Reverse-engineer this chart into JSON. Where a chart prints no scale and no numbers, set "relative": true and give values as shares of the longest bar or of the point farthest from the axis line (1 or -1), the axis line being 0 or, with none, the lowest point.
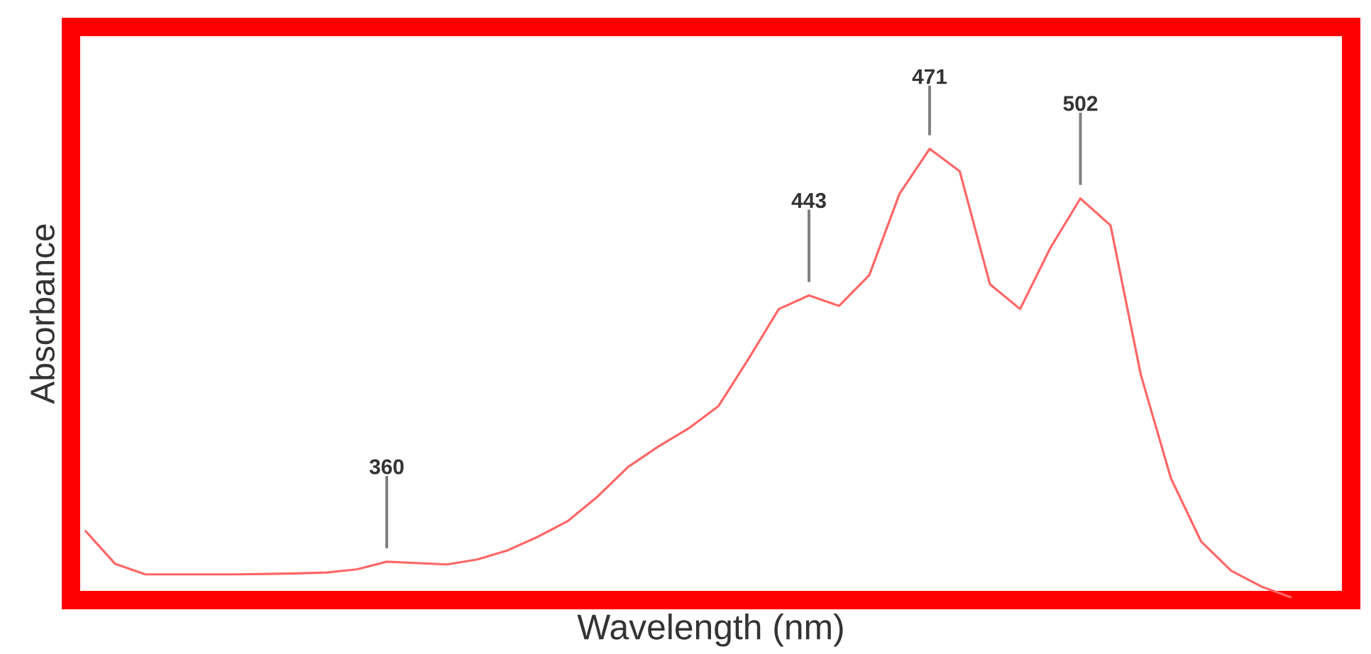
{
  "chart_data": {
    "type": "line",
    "relative": true,
    "xlabel": "Wavelength (nm)",
    "ylabel": "Absorbance",
    "categories": [
      null,
      null,
      null,
      null,
      null,
      null,
      null,
      null,
      null,
      null,
      null,
      null,
      null,
      null,
      null,
      null,
      null,
      null,
      null,
      null,
      null,
      null,
      null,
      null,
      null,
      null,
      null,
      null,
      null,
      null,
      null,
      null,
      null,
      null,
      null,
      null,
      null,
      null,
      null,
      null,
      null
    ],
    "series": [
      {
        "color": "#ff6666",
        "values": [
          0.154,
          0.08,
          0.057,
          0.057,
          0.057,
          0.057,
          0.058,
          0.059,
          0.061,
          0.068,
          0.085,
          0.082,
          0.079,
          0.09,
          0.11,
          0.14,
          0.175,
          0.23,
          0.295,
          0.34,
          0.38,
          0.43,
          0.535,
          0.645,
          0.675,
          0.652,
          0.72,
          0.9,
          1,
          0.95,
          0.7,
          0.645,
          0.78,
          0.89,
          0.83,
          0.5,
          0.27,
          0.13,
          0.065,
          0.03,
          0.006
        ]
      }
    ],
    "annotations": [
      "360",
      "443",
      "471",
      "502"
    ]
  }
}
